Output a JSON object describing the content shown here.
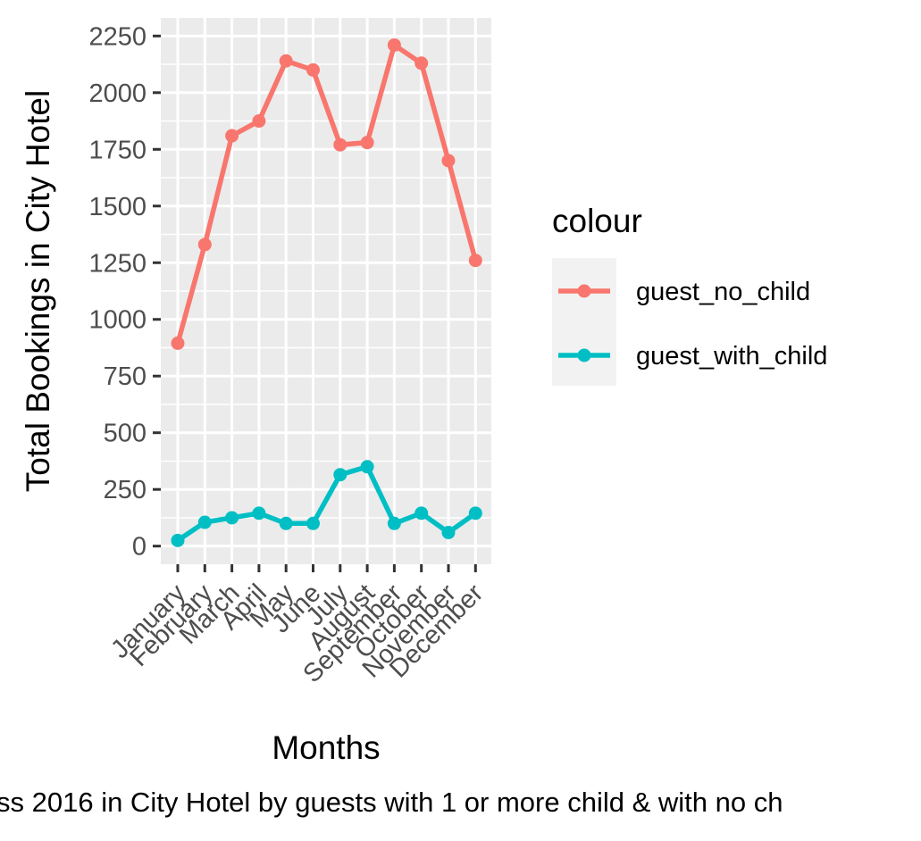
{
  "chart_data": {
    "type": "line",
    "title": "",
    "xlabel": "Months",
    "ylabel": "Total Bookings in City Hotel",
    "caption": "ss 2016 in City Hotel by guests with 1 or more child & with no ch",
    "categories": [
      "January",
      "February",
      "March",
      "April",
      "May",
      "June",
      "July",
      "August",
      "September",
      "October",
      "November",
      "December"
    ],
    "ylim": [
      -80,
      2330
    ],
    "yticks": [
      0,
      250,
      500,
      750,
      1000,
      1250,
      1500,
      1750,
      2000,
      2250
    ],
    "ytick_labels": [
      "0",
      "250",
      "500",
      "750",
      "1000",
      "1250",
      "1500",
      "1750",
      "2000",
      "2250"
    ],
    "grid": true,
    "legend": {
      "title": "colour",
      "position": "right"
    },
    "series": [
      {
        "name": "guest_no_child",
        "color": "#F8766D",
        "values": [
          895,
          1330,
          1810,
          1875,
          2140,
          2100,
          1770,
          1780,
          2210,
          2130,
          1700,
          1260
        ]
      },
      {
        "name": "guest_with_child",
        "color": "#00BFC4",
        "values": [
          25,
          105,
          125,
          145,
          100,
          100,
          315,
          350,
          100,
          145,
          60,
          145
        ]
      }
    ]
  },
  "colors": {
    "panel_background": "#EBEBEB",
    "grid_line": "#FFFFFF",
    "legend_key_background": "#F2F2F2"
  }
}
